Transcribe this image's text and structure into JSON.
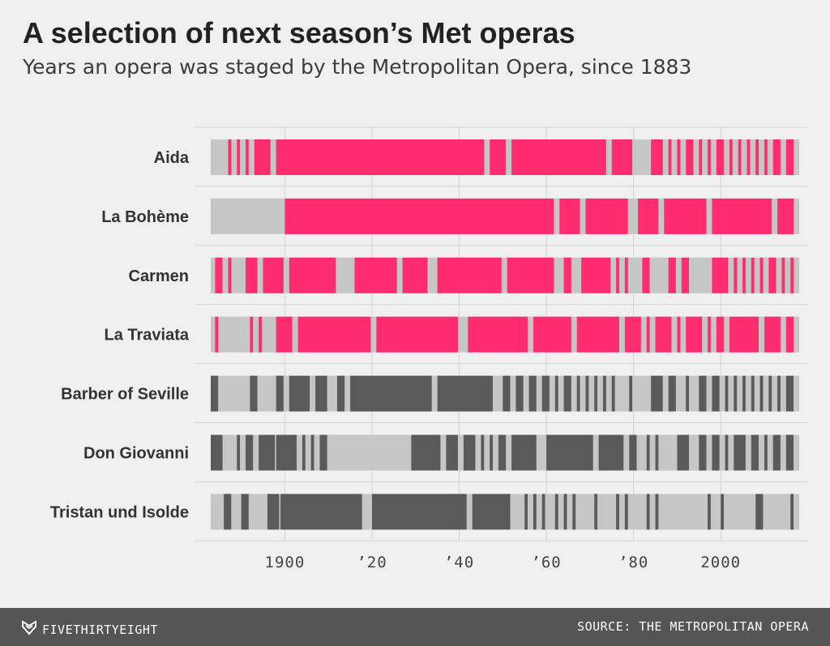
{
  "chart_data": {
    "type": "bar",
    "title": "A selection of next season’s Met operas",
    "subtitle": "Years an opera was staged by the Metropolitan Opera, since 1883",
    "xlim": [
      1883,
      2017
    ],
    "x_ticks": [
      {
        "value": 1900,
        "label": "1900"
      },
      {
        "value": 1920,
        "label": "’20"
      },
      {
        "value": 1940,
        "label": "’40"
      },
      {
        "value": 1960,
        "label": "’60"
      },
      {
        "value": 1980,
        "label": "’80"
      },
      {
        "value": 2000,
        "label": "2000"
      }
    ],
    "grid": true,
    "colors": {
      "staged_highlight": "#ff2d6f",
      "staged_other": "#5a5a5a",
      "not_staged": "#c6c6c6"
    },
    "series": [
      {
        "name": "Aida",
        "color": "staged_highlight",
        "staged_ranges": [
          [
            1887,
            1887
          ],
          [
            1889,
            1889
          ],
          [
            1891,
            1891
          ],
          [
            1893,
            1896
          ],
          [
            1898,
            1945
          ],
          [
            1947,
            1950
          ],
          [
            1952,
            1973
          ],
          [
            1975,
            1979
          ],
          [
            1984,
            1986
          ],
          [
            1988,
            1988
          ],
          [
            1990,
            1990
          ],
          [
            1992,
            1993
          ],
          [
            1995,
            1995
          ],
          [
            1997,
            1997
          ],
          [
            1999,
            2000
          ],
          [
            2002,
            2002
          ],
          [
            2004,
            2004
          ],
          [
            2006,
            2006
          ],
          [
            2008,
            2008
          ],
          [
            2010,
            2010
          ],
          [
            2012,
            2013
          ],
          [
            2015,
            2016
          ]
        ]
      },
      {
        "name": "La Bohème",
        "color": "staged_highlight",
        "staged_ranges": [
          [
            1900,
            1961
          ],
          [
            1963,
            1967
          ],
          [
            1969,
            1978
          ],
          [
            1981,
            1985
          ],
          [
            1987,
            1996
          ],
          [
            1998,
            2011
          ],
          [
            2013,
            2016
          ]
        ]
      },
      {
        "name": "Carmen",
        "color": "staged_highlight",
        "staged_ranges": [
          [
            1884,
            1885
          ],
          [
            1887,
            1887
          ],
          [
            1891,
            1893
          ],
          [
            1895,
            1899
          ],
          [
            1901,
            1911
          ],
          [
            1916,
            1925
          ],
          [
            1927,
            1932
          ],
          [
            1935,
            1949
          ],
          [
            1951,
            1961
          ],
          [
            1964,
            1965
          ],
          [
            1968,
            1974
          ],
          [
            1976,
            1976
          ],
          [
            1978,
            1978
          ],
          [
            1982,
            1983
          ],
          [
            1988,
            1989
          ],
          [
            1991,
            1992
          ],
          [
            1998,
            2001
          ],
          [
            2003,
            2003
          ],
          [
            2005,
            2005
          ],
          [
            2007,
            2007
          ],
          [
            2009,
            2009
          ],
          [
            2011,
            2012
          ],
          [
            2014,
            2014
          ],
          [
            2016,
            2016
          ]
        ]
      },
      {
        "name": "La Traviata",
        "color": "staged_highlight",
        "staged_ranges": [
          [
            1884,
            1884
          ],
          [
            1892,
            1892
          ],
          [
            1894,
            1894
          ],
          [
            1898,
            1901
          ],
          [
            1903,
            1919
          ],
          [
            1921,
            1939
          ],
          [
            1942,
            1955
          ],
          [
            1957,
            1965
          ],
          [
            1967,
            1976
          ],
          [
            1978,
            1981
          ],
          [
            1983,
            1983
          ],
          [
            1985,
            1988
          ],
          [
            1990,
            1990
          ],
          [
            1992,
            1995
          ],
          [
            1997,
            1997
          ],
          [
            1999,
            2000
          ],
          [
            2002,
            2008
          ],
          [
            2010,
            2013
          ],
          [
            2015,
            2016
          ]
        ]
      },
      {
        "name": "Barber of Seville",
        "color": "staged_other",
        "staged_ranges": [
          [
            1883,
            1884
          ],
          [
            1892,
            1893
          ],
          [
            1898,
            1899
          ],
          [
            1901,
            1905
          ],
          [
            1907,
            1909
          ],
          [
            1912,
            1913
          ],
          [
            1915,
            1933
          ],
          [
            1935,
            1947
          ],
          [
            1950,
            1951
          ],
          [
            1953,
            1954
          ],
          [
            1956,
            1957
          ],
          [
            1959,
            1960
          ],
          [
            1962,
            1962
          ],
          [
            1964,
            1965
          ],
          [
            1967,
            1967
          ],
          [
            1969,
            1969
          ],
          [
            1971,
            1971
          ],
          [
            1973,
            1973
          ],
          [
            1975,
            1975
          ],
          [
            1979,
            1979
          ],
          [
            1984,
            1986
          ],
          [
            1988,
            1989
          ],
          [
            1992,
            1992
          ],
          [
            1995,
            1996
          ],
          [
            1998,
            1999
          ],
          [
            2001,
            2001
          ],
          [
            2003,
            2003
          ],
          [
            2005,
            2005
          ],
          [
            2007,
            2007
          ],
          [
            2009,
            2009
          ],
          [
            2011,
            2011
          ],
          [
            2013,
            2013
          ],
          [
            2015,
            2016
          ]
        ]
      },
      {
        "name": "Don Giovanni",
        "color": "staged_other",
        "staged_ranges": [
          [
            1883,
            1885
          ],
          [
            1889,
            1889
          ],
          [
            1891,
            1892
          ],
          [
            1894,
            1897
          ],
          [
            1898,
            1902
          ],
          [
            1904,
            1904
          ],
          [
            1906,
            1906
          ],
          [
            1908,
            1909
          ],
          [
            1929,
            1935
          ],
          [
            1937,
            1939
          ],
          [
            1941,
            1943
          ],
          [
            1945,
            1945
          ],
          [
            1947,
            1947
          ],
          [
            1949,
            1950
          ],
          [
            1952,
            1957
          ],
          [
            1960,
            1970
          ],
          [
            1972,
            1977
          ],
          [
            1979,
            1980
          ],
          [
            1983,
            1983
          ],
          [
            1985,
            1985
          ],
          [
            1990,
            1992
          ],
          [
            1995,
            1996
          ],
          [
            1998,
            1999
          ],
          [
            2001,
            2001
          ],
          [
            2003,
            2005
          ],
          [
            2007,
            2008
          ],
          [
            2010,
            2010
          ],
          [
            2012,
            2013
          ],
          [
            2015,
            2016
          ]
        ]
      },
      {
        "name": "Tristan und Isolde",
        "color": "staged_other",
        "staged_ranges": [
          [
            1886,
            1887
          ],
          [
            1890,
            1891
          ],
          [
            1896,
            1898
          ],
          [
            1899,
            1917
          ],
          [
            1920,
            1941
          ],
          [
            1943,
            1951
          ],
          [
            1955,
            1955
          ],
          [
            1957,
            1957
          ],
          [
            1959,
            1959
          ],
          [
            1962,
            1962
          ],
          [
            1964,
            1964
          ],
          [
            1966,
            1966
          ],
          [
            1971,
            1971
          ],
          [
            1976,
            1976
          ],
          [
            1978,
            1978
          ],
          [
            1983,
            1983
          ],
          [
            1985,
            1985
          ],
          [
            1997,
            1997
          ],
          [
            2000,
            2000
          ],
          [
            2008,
            2009
          ],
          [
            2016,
            2016
          ]
        ]
      }
    ]
  },
  "footer": {
    "brand": "FIVETHIRTYEIGHT",
    "brand_icon": "fivethirtyeight-logo-icon",
    "source": "SOURCE: THE METROPOLITAN OPERA"
  }
}
